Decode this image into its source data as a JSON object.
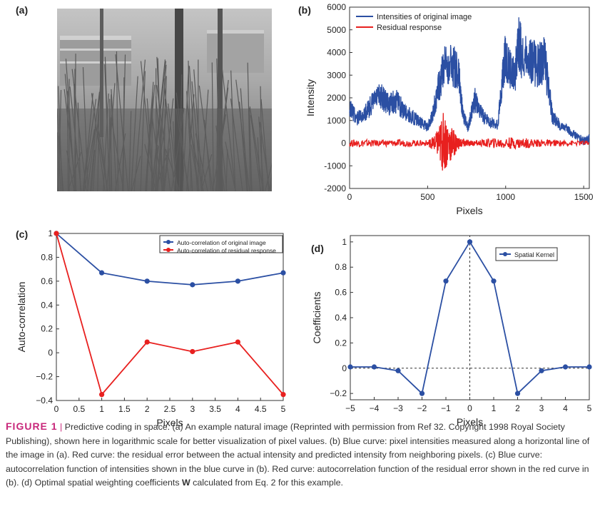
{
  "panel_labels": {
    "a": "(a)",
    "b": "(b)",
    "c": "(c)",
    "d": "(d)"
  },
  "colors": {
    "blue": "#2b4fa3",
    "red": "#e8201f",
    "caption_accent": "#c8277a"
  },
  "chart_data": [
    {
      "id": "b",
      "type": "line",
      "xlabel": "Pixels",
      "ylabel": "Intensity",
      "xlim": [
        0,
        1536
      ],
      "ylim": [
        -2000,
        6000
      ],
      "xticks": [
        0,
        500,
        1000,
        1500
      ],
      "yticks": [
        -2000,
        -1000,
        0,
        1000,
        2000,
        3000,
        4000,
        5000,
        6000
      ],
      "legend_position": "top-left",
      "series": [
        {
          "name": "Intensities of original image",
          "color": "#2b4fa3",
          "x": [
            0,
            50,
            100,
            150,
            200,
            250,
            300,
            350,
            400,
            450,
            500,
            530,
            560,
            600,
            650,
            700,
            730,
            760,
            800,
            850,
            900,
            950,
            980,
            1000,
            1030,
            1060,
            1080,
            1100,
            1150,
            1200,
            1250,
            1300,
            1350,
            1400,
            1450,
            1500,
            1536
          ],
          "y": [
            2000,
            1400,
            1700,
            2300,
            2700,
            2200,
            2400,
            1800,
            1500,
            1200,
            900,
            1600,
            2800,
            4200,
            4600,
            3800,
            1500,
            900,
            2500,
            1600,
            1200,
            1000,
            3800,
            5000,
            4300,
            3600,
            5900,
            5200,
            4900,
            4400,
            4700,
            1500,
            1000,
            800,
            500,
            300,
            400
          ]
        },
        {
          "name": "Residual response",
          "color": "#e8201f",
          "x": [
            0,
            100,
            200,
            300,
            400,
            500,
            550,
            600,
            650,
            700,
            750,
            800,
            900,
            1000,
            1100,
            1200,
            1300,
            1400,
            1536
          ],
          "y": [
            100,
            120,
            80,
            100,
            90,
            80,
            300,
            1200,
            700,
            200,
            100,
            60,
            150,
            200,
            180,
            120,
            90,
            70,
            60
          ]
        }
      ]
    },
    {
      "id": "c",
      "type": "line",
      "xlabel": "Pixels",
      "ylabel": "Auto-correlation",
      "xlim": [
        0,
        5
      ],
      "ylim": [
        -0.4,
        1
      ],
      "xticks": [
        "0",
        "0.5",
        "1",
        "1.5",
        "2",
        "2.5",
        "3",
        "3.5",
        "4",
        "4.5",
        "5"
      ],
      "yticks": [
        "−0.4",
        "−0.2",
        "0",
        "0.2",
        "0.4",
        "0.6",
        "0.8",
        "1"
      ],
      "legend_position": "top-right",
      "series": [
        {
          "name": "Auto-correlation of original image",
          "color": "#2b4fa3",
          "x": [
            0,
            1,
            2,
            3,
            4,
            5
          ],
          "y": [
            1.0,
            0.67,
            0.6,
            0.57,
            0.6,
            0.67
          ]
        },
        {
          "name": "Auto-correlation of residual response",
          "color": "#e8201f",
          "x": [
            0,
            1,
            2,
            3,
            4,
            5
          ],
          "y": [
            1.0,
            -0.35,
            0.09,
            0.01,
            0.09,
            -0.35
          ]
        }
      ]
    },
    {
      "id": "d",
      "type": "line",
      "xlabel": "Pixels",
      "ylabel": "Coefficients",
      "xlim": [
        -5,
        5
      ],
      "ylim": [
        -0.25,
        1.05
      ],
      "xticks": [
        "−5",
        "−4",
        "−3",
        "−2",
        "−1",
        "0",
        "1",
        "2",
        "3",
        "4",
        "5"
      ],
      "yticks": [
        "−0.2",
        "0",
        "0.2",
        "0.4",
        "0.6",
        "0.8",
        "1"
      ],
      "legend_position": "top-right",
      "series": [
        {
          "name": "Spatial Kernel",
          "color": "#2b4fa3",
          "x": [
            -5,
            -4,
            -3,
            -2,
            -1,
            0,
            1,
            2,
            3,
            4,
            5
          ],
          "y": [
            0.01,
            0.01,
            -0.02,
            -0.2,
            0.69,
            1.0,
            0.69,
            -0.2,
            -0.02,
            0.01,
            0.01
          ]
        }
      ]
    }
  ],
  "caption": {
    "label": "FIGURE 1",
    "separator": "|",
    "text": "Predictive coding in space. (a) An example natural image (Reprinted with permission from Ref 32. Copyright 1998 Royal Society Publishing), shown here in logarithmic scale for better visualization of pixel values. (b) Blue curve: pixel intensities measured along a horizontal line of the image in (a). Red curve: the residual error between the actual intensity and predicted intensity from neighboring pixels. (c) Blue curve: autocorrelation function of intensities shown in the blue curve in (b). Red curve: autocorrelation function of the residual error shown in the red curve in (b). (d) Optimal spatial weighting coefficients ",
    "bold_symbol": "W",
    "text_end": " calculated from Eq. 2 for this example."
  }
}
